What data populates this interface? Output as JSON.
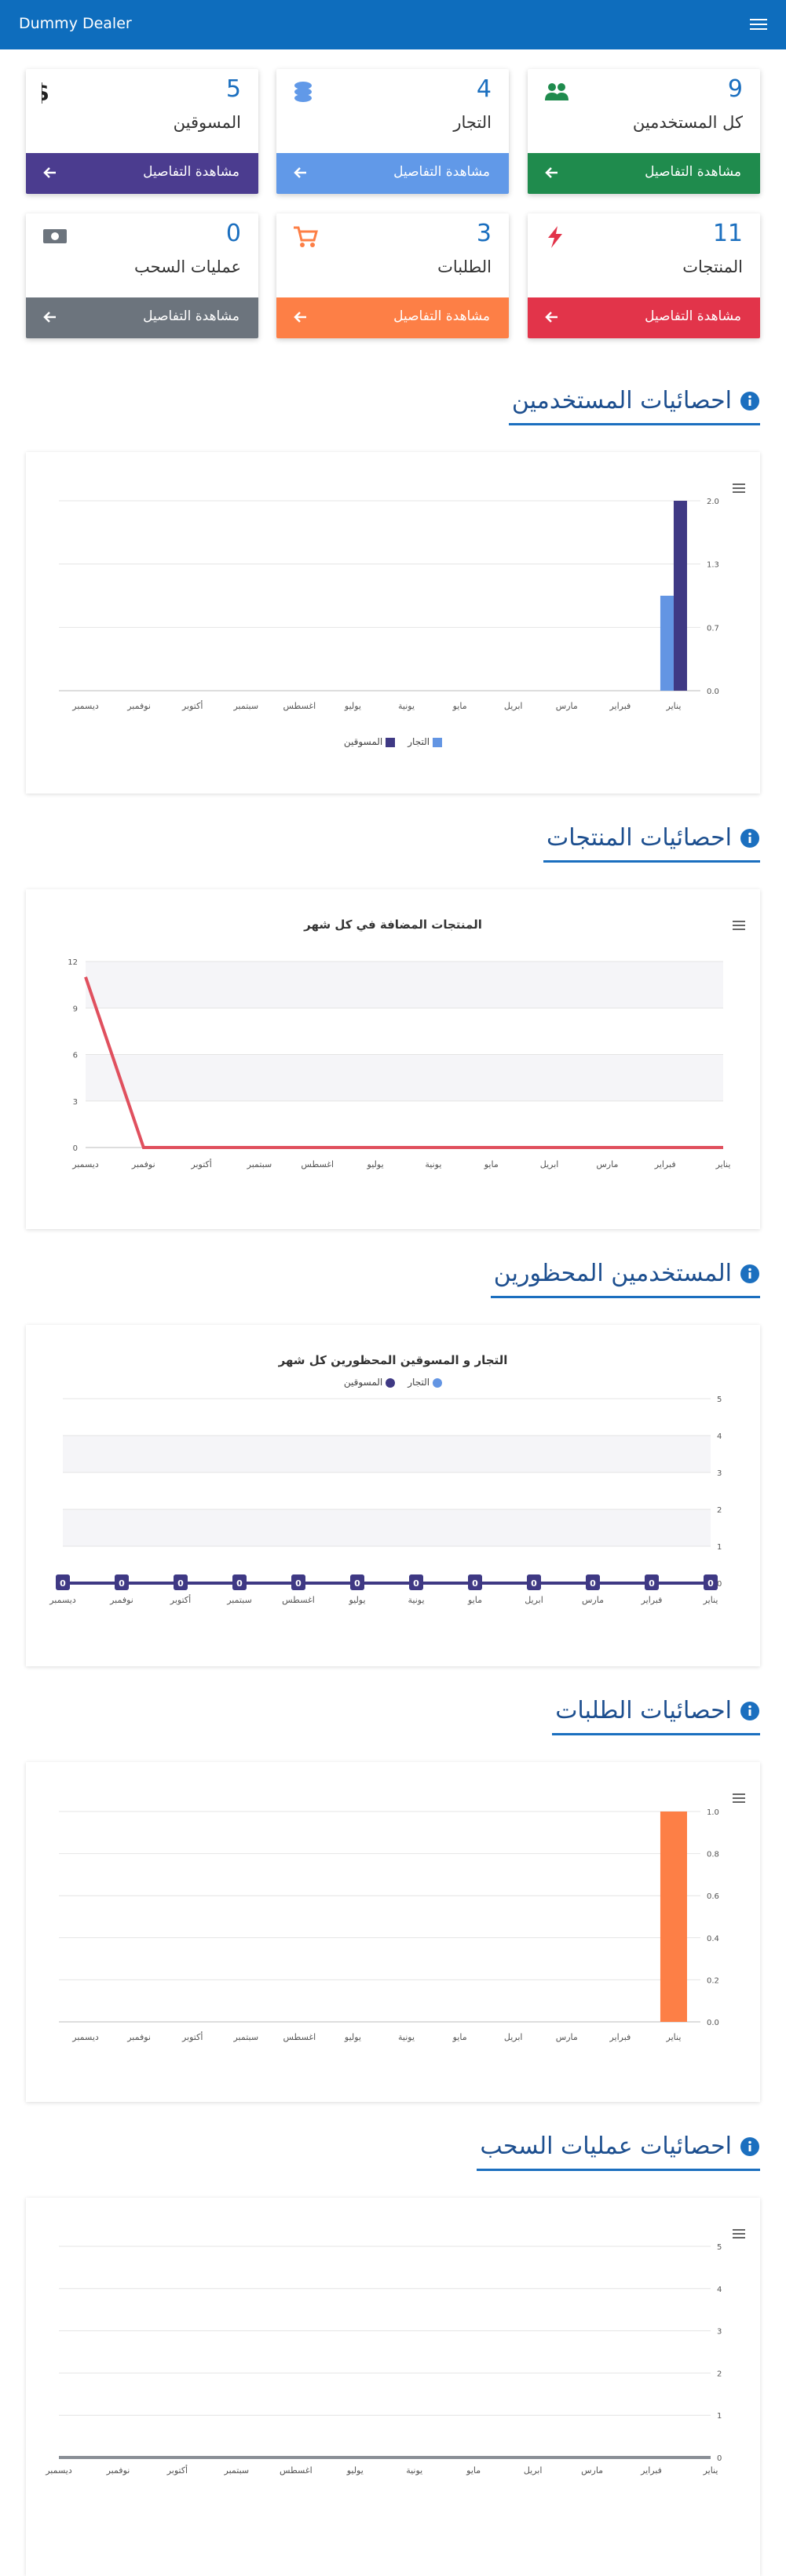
{
  "navbar": {
    "brand": "Dummy Dealer"
  },
  "cards": [
    {
      "label": "كل المستخدمين",
      "value": 9,
      "link": "مشاهدة التفاصيل",
      "color": "#1f8b4d",
      "icon": "users"
    },
    {
      "label": "التجار",
      "value": 4,
      "link": "مشاهدة التفاصيل",
      "color": "#6199e8",
      "icon": "database"
    },
    {
      "label": "المسوقين",
      "value": 5,
      "link": "مشاهدة التفاصيل",
      "color": "#4b3c8f",
      "icon": "dollar"
    },
    {
      "label": "المنتجات",
      "value": 11,
      "link": "مشاهدة التفاصيل",
      "color": "#e2344a",
      "icon": "bolt"
    },
    {
      "label": "الطلبات",
      "value": 3,
      "link": "مشاهدة التفاصيل",
      "color": "#fd7f46",
      "icon": "cart"
    },
    {
      "label": "عمليات السحب",
      "value": 0,
      "link": "مشاهدة التفاصيل",
      "color": "#6c747d",
      "icon": "money"
    }
  ],
  "sections": [
    {
      "heading": "احصائيات المستخدمين"
    },
    {
      "heading": "احصائيات المنتجات"
    },
    {
      "heading": "المستخدمين المحظورين"
    },
    {
      "heading": "احصائيات الطلبات"
    },
    {
      "heading": "احصائيات عمليات السحب"
    }
  ],
  "chart_data": [
    {
      "type": "bar",
      "categories": [
        "يناير",
        "فبراير",
        "مارس",
        "ابريل",
        "مايو",
        "يونية",
        "يوليو",
        "اغسطس",
        "سبتمبر",
        "أكتوبر",
        "نوفمبر",
        "ديسمبر"
      ],
      "x_reversed": true,
      "y_axis": "right",
      "grid": true,
      "series": [
        {
          "name": "التجار",
          "color": "#6395e3",
          "values": [
            1,
            0,
            0,
            0,
            0,
            0,
            0,
            0,
            0,
            0,
            0,
            0
          ]
        },
        {
          "name": "المسوقين",
          "color": "#3f3984",
          "values": [
            2,
            0,
            0,
            0,
            0,
            0,
            0,
            0,
            0,
            0,
            0,
            0
          ]
        }
      ],
      "ylim": [
        0,
        2
      ],
      "yticks": [
        {
          "value": 0,
          "label": "0.0"
        },
        {
          "value": 0.6667,
          "label": "0.7"
        },
        {
          "value": 1.3333,
          "label": "1.3"
        },
        {
          "value": 2,
          "label": "2.0"
        }
      ],
      "legend": "bottom"
    },
    {
      "type": "line",
      "title": "المنتجات المضافة في كل شهر",
      "categories": [
        "يناير",
        "فبراير",
        "مارس",
        "ابريل",
        "مايو",
        "يونية",
        "يوليو",
        "اغسطس",
        "سبتمبر",
        "أكتوبر",
        "نوفمبر",
        "ديسمبر"
      ],
      "x_reversed": true,
      "y_axis": "left",
      "grid": "bands",
      "series": [
        {
          "color": "#e0505e",
          "values": [
            0,
            0,
            0,
            0,
            0,
            0,
            0,
            0,
            0,
            0,
            0,
            11
          ]
        }
      ],
      "ylim": [
        0,
        12
      ],
      "yticks": [
        0,
        3,
        6,
        9,
        12
      ]
    },
    {
      "type": "line",
      "title": "التجار و المسوقين المحظورين كل شهر",
      "categories": [
        "يناير",
        "فبراير",
        "مارس",
        "ابريل",
        "مايو",
        "يونية",
        "يوليو",
        "اغسطس",
        "سبتمبر",
        "أكتوبر",
        "نوفمبر",
        "ديسمبر"
      ],
      "x_reversed": true,
      "y_axis": "right",
      "grid": "bands",
      "data_labels": true,
      "series": [
        {
          "name": "التجار",
          "color": "#6395e3",
          "values": [
            0,
            0,
            0,
            0,
            0,
            0,
            0,
            0,
            0,
            0,
            0,
            0
          ]
        },
        {
          "name": "المسوقين",
          "color": "#3f3984",
          "values": [
            0,
            0,
            0,
            0,
            0,
            0,
            0,
            0,
            0,
            0,
            0,
            0
          ]
        }
      ],
      "ylim": [
        0,
        5
      ],
      "yticks": [
        0,
        1,
        2,
        3,
        4,
        5
      ],
      "legend": "top"
    },
    {
      "type": "bar",
      "categories": [
        "يناير",
        "فبراير",
        "مارس",
        "ابريل",
        "مايو",
        "يونية",
        "يوليو",
        "اغسطس",
        "سبتمبر",
        "أكتوبر",
        "نوفمبر",
        "ديسمبر"
      ],
      "x_reversed": true,
      "y_axis": "right",
      "grid": true,
      "series": [
        {
          "color": "#fd7f46",
          "values": [
            1,
            0,
            0,
            0,
            0,
            0,
            0,
            0,
            0,
            0,
            0,
            0
          ]
        }
      ],
      "ylim": [
        0,
        1
      ],
      "yticks": [
        {
          "value": 0,
          "label": "0.0"
        },
        {
          "value": 0.2,
          "label": "0.2"
        },
        {
          "value": 0.4,
          "label": "0.4"
        },
        {
          "value": 0.6,
          "label": "0.6"
        },
        {
          "value": 0.8,
          "label": "0.8"
        },
        {
          "value": 1,
          "label": "1.0"
        }
      ]
    },
    {
      "type": "line",
      "categories": [
        "يناير",
        "فبراير",
        "مارس",
        "ابريل",
        "مايو",
        "يونية",
        "يوليو",
        "اغسطس",
        "سبتمبر",
        "أكتوبر",
        "نوفمبر",
        "ديسمبر"
      ],
      "x_reversed": true,
      "y_axis": "right",
      "grid": true,
      "series": [
        {
          "color": "#8a8f96",
          "values": [
            0,
            0,
            0,
            0,
            0,
            0,
            0,
            0,
            0,
            0,
            0,
            0
          ]
        }
      ],
      "ylim": [
        0,
        5
      ],
      "yticks": [
        0,
        1,
        2,
        3,
        4,
        5
      ]
    }
  ]
}
